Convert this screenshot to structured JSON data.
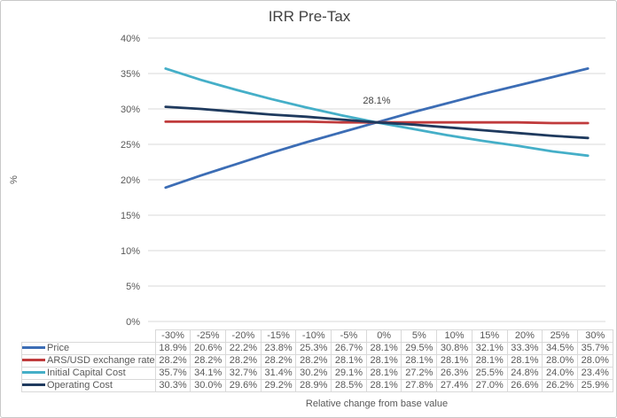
{
  "figure": {
    "border_color": "#c9c9c9",
    "background": "#ffffff",
    "grid_color": "#d9d9d9",
    "text_color": "#595959",
    "title_color": "#424242"
  },
  "chart_data": {
    "type": "line",
    "title": "IRR Pre-Tax",
    "xlabel": "Relative change from base value",
    "ylabel": "%",
    "ylim": [
      0,
      40
    ],
    "ytick_step": 5,
    "ytick_suffix": "%",
    "grid": true,
    "legend_position": "table-left-column",
    "categories": [
      "-30%",
      "-25%",
      "-20%",
      "-15%",
      "-10%",
      "-5%",
      "0%",
      "5%",
      "10%",
      "15%",
      "20%",
      "25%",
      "30%"
    ],
    "series": [
      {
        "name": "Price",
        "color": "#3c6db5",
        "values": [
          18.9,
          20.6,
          22.2,
          23.8,
          25.3,
          26.7,
          28.1,
          29.5,
          30.8,
          32.1,
          33.3,
          34.5,
          35.7
        ]
      },
      {
        "name": "ARS/USD exchange rate",
        "color": "#c03b3c",
        "values": [
          28.2,
          28.2,
          28.2,
          28.2,
          28.2,
          28.1,
          28.1,
          28.1,
          28.1,
          28.1,
          28.1,
          28.0,
          28.0
        ]
      },
      {
        "name": "Initial Capital Cost",
        "color": "#45afc8",
        "values": [
          35.7,
          34.1,
          32.7,
          31.4,
          30.2,
          29.1,
          28.1,
          27.2,
          26.3,
          25.5,
          24.8,
          24.0,
          23.4
        ]
      },
      {
        "name": "Operating Cost",
        "color": "#1f3a5e",
        "values": [
          30.3,
          30.0,
          29.6,
          29.2,
          28.9,
          28.5,
          28.1,
          27.8,
          27.4,
          27.0,
          26.6,
          26.2,
          25.9
        ]
      }
    ],
    "annotation": {
      "text": "28.1%",
      "category_index": 6,
      "value": 28.1
    }
  }
}
